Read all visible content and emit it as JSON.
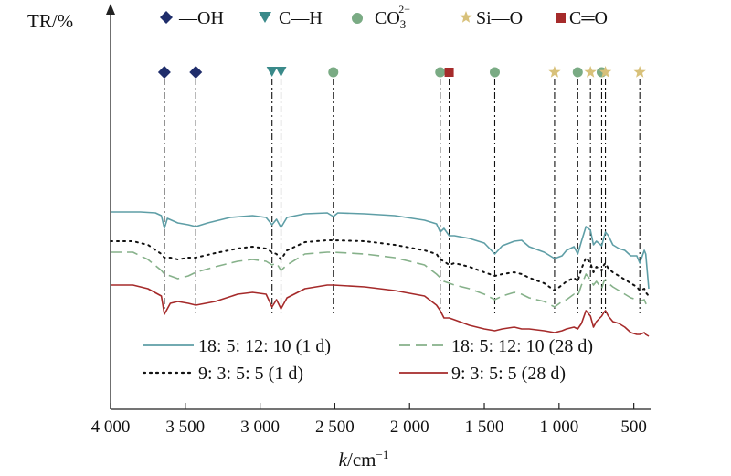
{
  "chart_data": {
    "type": "line",
    "ylabel": "TR/%",
    "xlabel_main": "k",
    "xlabel_unit": "/cm",
    "xlabel_exp": "−1",
    "xlim": [
      4000,
      400
    ],
    "xtick_values": [
      4000,
      3500,
      3000,
      2500,
      2000,
      1500,
      1000,
      500
    ],
    "xtick_labels": [
      "4 000",
      "3 500",
      "3 000",
      "2 500",
      "2 000",
      "1 500",
      "1 000",
      "500"
    ],
    "marker_legend": [
      {
        "label": "—OH",
        "symbol": "diamond",
        "color": "#1f2d6b"
      },
      {
        "label": "C—H",
        "symbol": "triangle",
        "color": "#3a8a8a"
      },
      {
        "label": "CO",
        "sub": "3",
        "sup": "2−",
        "symbol": "circle",
        "color": "#7aab84"
      },
      {
        "label": "Si—O",
        "symbol": "star",
        "color": "#d8c17a"
      },
      {
        "label": "C═O",
        "symbol": "square",
        "color": "#a62b2b"
      }
    ],
    "peak_lines": [
      {
        "x": 3640,
        "symbol": "diamond"
      },
      {
        "x": 3430,
        "symbol": "diamond"
      },
      {
        "x": 2920,
        "symbol": "triangle"
      },
      {
        "x": 2860,
        "symbol": "triangle"
      },
      {
        "x": 2510,
        "symbol": "circle"
      },
      {
        "x": 1795,
        "symbol": "circle"
      },
      {
        "x": 1735,
        "symbol": "square"
      },
      {
        "x": 1430,
        "symbol": "circle"
      },
      {
        "x": 1030,
        "symbol": "star"
      },
      {
        "x": 875,
        "symbol": "circle"
      },
      {
        "x": 790,
        "symbol": "star"
      },
      {
        "x": 715,
        "symbol": "circle"
      },
      {
        "x": 690,
        "symbol": "star"
      },
      {
        "x": 460,
        "symbol": "star"
      }
    ],
    "series": [
      {
        "name": "18: 5: 12: 10 (1 d)",
        "color": "#5e9ea6",
        "dash": "none",
        "points": [
          [
            4000,
            18
          ],
          [
            3800,
            18
          ],
          [
            3700,
            17.5
          ],
          [
            3660,
            16
          ],
          [
            3640,
            9
          ],
          [
            3620,
            14.5
          ],
          [
            3550,
            12
          ],
          [
            3480,
            11
          ],
          [
            3430,
            10
          ],
          [
            3350,
            12
          ],
          [
            3200,
            15
          ],
          [
            3050,
            16
          ],
          [
            2960,
            15
          ],
          [
            2920,
            11
          ],
          [
            2890,
            14
          ],
          [
            2860,
            9.5
          ],
          [
            2820,
            15
          ],
          [
            2700,
            17
          ],
          [
            2550,
            17.5
          ],
          [
            2510,
            15.5
          ],
          [
            2480,
            17.5
          ],
          [
            2300,
            17
          ],
          [
            2100,
            16
          ],
          [
            1900,
            13.5
          ],
          [
            1820,
            11.5
          ],
          [
            1795,
            7
          ],
          [
            1770,
            9
          ],
          [
            1735,
            5
          ],
          [
            1700,
            5
          ],
          [
            1600,
            3.5
          ],
          [
            1500,
            1
          ],
          [
            1430,
            -5
          ],
          [
            1380,
            -0.5
          ],
          [
            1300,
            2
          ],
          [
            1250,
            2.5
          ],
          [
            1200,
            -1
          ],
          [
            1100,
            -4
          ],
          [
            1030,
            -7.5
          ],
          [
            980,
            -6
          ],
          [
            950,
            -3
          ],
          [
            900,
            -1
          ],
          [
            875,
            -5
          ],
          [
            850,
            2
          ],
          [
            820,
            10
          ],
          [
            790,
            8
          ],
          [
            770,
            0
          ],
          [
            750,
            2
          ],
          [
            715,
            -0.5
          ],
          [
            700,
            4
          ],
          [
            690,
            7
          ],
          [
            670,
            5
          ],
          [
            640,
            0
          ],
          [
            600,
            -2
          ],
          [
            560,
            -3
          ],
          [
            520,
            -6
          ],
          [
            480,
            -6
          ],
          [
            460,
            -10
          ],
          [
            430,
            -3
          ],
          [
            420,
            -5
          ],
          [
            400,
            -24
          ]
        ]
      },
      {
        "name": "18: 5: 12: 10 (28 d)",
        "color": "#86b18a",
        "dash": "12 6",
        "points": [
          [
            4000,
            -4
          ],
          [
            3850,
            -4
          ],
          [
            3750,
            -8
          ],
          [
            3660,
            -14
          ],
          [
            3640,
            -16
          ],
          [
            3600,
            -17
          ],
          [
            3550,
            -18.5
          ],
          [
            3480,
            -17
          ],
          [
            3430,
            -15
          ],
          [
            3300,
            -12
          ],
          [
            3150,
            -9
          ],
          [
            3050,
            -8
          ],
          [
            2960,
            -9
          ],
          [
            2920,
            -11
          ],
          [
            2890,
            -10
          ],
          [
            2860,
            -14
          ],
          [
            2820,
            -11
          ],
          [
            2700,
            -5
          ],
          [
            2550,
            -4
          ],
          [
            2510,
            -4
          ],
          [
            2300,
            -5
          ],
          [
            2100,
            -7
          ],
          [
            1900,
            -11
          ],
          [
            1820,
            -16
          ],
          [
            1795,
            -18
          ],
          [
            1770,
            -20
          ],
          [
            1735,
            -21
          ],
          [
            1700,
            -22
          ],
          [
            1600,
            -24
          ],
          [
            1500,
            -27
          ],
          [
            1430,
            -30
          ],
          [
            1380,
            -28
          ],
          [
            1300,
            -26
          ],
          [
            1250,
            -27
          ],
          [
            1200,
            -29
          ],
          [
            1100,
            -31
          ],
          [
            1030,
            -34
          ],
          [
            980,
            -31
          ],
          [
            950,
            -30
          ],
          [
            900,
            -27
          ],
          [
            875,
            -28
          ],
          [
            850,
            -22
          ],
          [
            820,
            -16
          ],
          [
            790,
            -19
          ],
          [
            770,
            -22
          ],
          [
            750,
            -20
          ],
          [
            715,
            -24
          ],
          [
            700,
            -20
          ],
          [
            690,
            -19
          ],
          [
            670,
            -21
          ],
          [
            640,
            -23
          ],
          [
            600,
            -25
          ],
          [
            560,
            -27
          ],
          [
            520,
            -29
          ],
          [
            480,
            -30
          ],
          [
            460,
            -31
          ],
          [
            430,
            -30
          ],
          [
            420,
            -32
          ],
          [
            400,
            -34
          ]
        ]
      },
      {
        "name": "9: 3: 5: 5 (1 d)",
        "color": "#111111",
        "dash": "2 5",
        "points": [
          [
            4000,
            2
          ],
          [
            3850,
            2
          ],
          [
            3750,
            0
          ],
          [
            3660,
            -5
          ],
          [
            3640,
            -7
          ],
          [
            3600,
            -7
          ],
          [
            3550,
            -8
          ],
          [
            3480,
            -7
          ],
          [
            3430,
            -7
          ],
          [
            3300,
            -4.5
          ],
          [
            3150,
            -2
          ],
          [
            3050,
            -1
          ],
          [
            2960,
            -2
          ],
          [
            2920,
            -4
          ],
          [
            2890,
            -5
          ],
          [
            2860,
            -8
          ],
          [
            2820,
            -3
          ],
          [
            2700,
            1.5
          ],
          [
            2550,
            2.5
          ],
          [
            2510,
            2.5
          ],
          [
            2300,
            2
          ],
          [
            2100,
            0
          ],
          [
            1900,
            -3
          ],
          [
            1820,
            -5
          ],
          [
            1795,
            -8
          ],
          [
            1770,
            -9
          ],
          [
            1735,
            -11
          ],
          [
            1700,
            -10
          ],
          [
            1600,
            -12
          ],
          [
            1500,
            -15
          ],
          [
            1430,
            -17
          ],
          [
            1380,
            -16
          ],
          [
            1300,
            -15
          ],
          [
            1250,
            -16
          ],
          [
            1200,
            -18
          ],
          [
            1100,
            -21
          ],
          [
            1030,
            -25
          ],
          [
            980,
            -22
          ],
          [
            950,
            -20
          ],
          [
            900,
            -18
          ],
          [
            875,
            -20
          ],
          [
            850,
            -13
          ],
          [
            820,
            -7
          ],
          [
            790,
            -10
          ],
          [
            770,
            -15
          ],
          [
            750,
            -12
          ],
          [
            715,
            -14
          ],
          [
            700,
            -11
          ],
          [
            690,
            -10
          ],
          [
            670,
            -13
          ],
          [
            640,
            -15
          ],
          [
            600,
            -17
          ],
          [
            560,
            -19
          ],
          [
            520,
            -21
          ],
          [
            480,
            -23
          ],
          [
            460,
            -25
          ],
          [
            430,
            -24
          ],
          [
            420,
            -26
          ],
          [
            400,
            -28
          ]
        ]
      },
      {
        "name": "9: 3: 5: 5 (28 d)",
        "color": "#a52a2a",
        "dash": "none",
        "points": [
          [
            4000,
            -22
          ],
          [
            3850,
            -22
          ],
          [
            3750,
            -24
          ],
          [
            3660,
            -28
          ],
          [
            3640,
            -38
          ],
          [
            3600,
            -32
          ],
          [
            3550,
            -31
          ],
          [
            3480,
            -32
          ],
          [
            3430,
            -33
          ],
          [
            3300,
            -31
          ],
          [
            3150,
            -27
          ],
          [
            3050,
            -26
          ],
          [
            2960,
            -27
          ],
          [
            2920,
            -34
          ],
          [
            2890,
            -30
          ],
          [
            2860,
            -35
          ],
          [
            2820,
            -29
          ],
          [
            2700,
            -24
          ],
          [
            2550,
            -22
          ],
          [
            2510,
            -22
          ],
          [
            2300,
            -23
          ],
          [
            2100,
            -25
          ],
          [
            1900,
            -28
          ],
          [
            1820,
            -33
          ],
          [
            1795,
            -36
          ],
          [
            1770,
            -40
          ],
          [
            1735,
            -40
          ],
          [
            1700,
            -41
          ],
          [
            1600,
            -44
          ],
          [
            1500,
            -46
          ],
          [
            1430,
            -47
          ],
          [
            1380,
            -46
          ],
          [
            1300,
            -45
          ],
          [
            1250,
            -46
          ],
          [
            1200,
            -46
          ],
          [
            1100,
            -47
          ],
          [
            1030,
            -48
          ],
          [
            980,
            -47
          ],
          [
            950,
            -46
          ],
          [
            900,
            -45
          ],
          [
            875,
            -46
          ],
          [
            850,
            -43
          ],
          [
            820,
            -36
          ],
          [
            790,
            -39
          ],
          [
            770,
            -45
          ],
          [
            750,
            -42
          ],
          [
            715,
            -39
          ],
          [
            700,
            -37
          ],
          [
            690,
            -36
          ],
          [
            670,
            -39
          ],
          [
            640,
            -42
          ],
          [
            600,
            -43
          ],
          [
            560,
            -45
          ],
          [
            520,
            -48
          ],
          [
            480,
            -49
          ],
          [
            460,
            -49
          ],
          [
            430,
            -48
          ],
          [
            420,
            -49
          ],
          [
            400,
            -50
          ]
        ]
      }
    ]
  }
}
